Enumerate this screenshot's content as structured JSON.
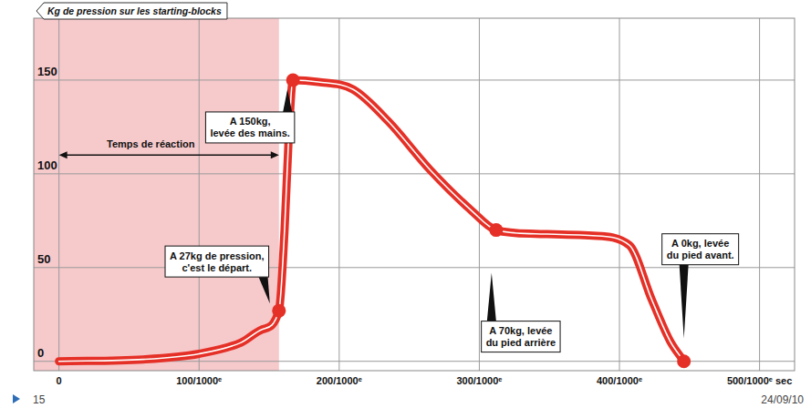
{
  "chart_data": {
    "type": "line",
    "y_label": "Kg de pression sur les starting-blocks",
    "x": [
      0,
      60,
      100,
      130,
      145,
      157,
      161,
      164,
      167,
      185,
      210,
      235,
      265,
      295,
      312,
      340,
      381,
      407,
      423,
      436,
      446
    ],
    "values": [
      0,
      1,
      4,
      10,
      17,
      27,
      70,
      120,
      150,
      149,
      145,
      128,
      102,
      80,
      70,
      68,
      67,
      62,
      33,
      11,
      0
    ],
    "color": "#e53027",
    "xlim": [
      -18,
      525
    ],
    "ylim": [
      -5,
      183
    ],
    "xticks": [
      0,
      {
        "value": 100,
        "label": "100/1000ᵉ"
      },
      {
        "value": 200,
        "label": "200/1000ᵉ"
      },
      {
        "value": 300,
        "label": "300/1000ᵉ"
      },
      {
        "value": 400,
        "label": "400/1000ᵉ"
      },
      {
        "value": 500,
        "label": "500/1000ᵉ sec"
      }
    ],
    "yticks": [
      0,
      50,
      100,
      150
    ],
    "grid": true,
    "reaction_time": {
      "label": "Temps de réaction",
      "start": 0,
      "end": 157
    },
    "annotations": [
      {
        "text": [
          "A 27kg de pression,",
          "c'est le départ."
        ],
        "x": 157,
        "y": 27
      },
      {
        "text": [
          "A 150kg,",
          "levée des mains."
        ],
        "x": 167,
        "y": 150
      },
      {
        "text": [
          "A 70kg, levée",
          "du pied arrière"
        ],
        "x": 312,
        "y": 70
      },
      {
        "text": [
          "A 0kg, levée",
          "du pied avant."
        ],
        "x": 446,
        "y": 0
      }
    ]
  },
  "footer": {
    "page": "15",
    "date": "24/09/10"
  }
}
